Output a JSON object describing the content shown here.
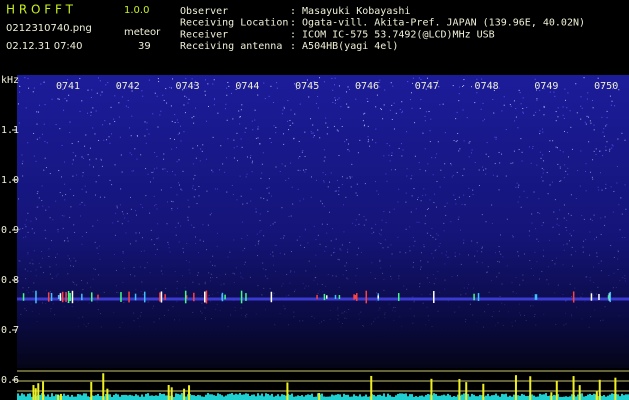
{
  "app": {
    "name": "H R O F F T",
    "version": "1.0.0"
  },
  "file": "0212310740.png",
  "datetime": "02.12.31 07:40",
  "meteor": {
    "label": "meteor",
    "count": "39"
  },
  "info": [
    {
      "label": "Observer",
      "value": ": Masayuki Kobayashi"
    },
    {
      "label": "Receiving Location",
      "value": ": Ogata-vill. Akita-Pref. JAPAN (139.96E, 40.02N)"
    },
    {
      "label": "Receiver",
      "value": ": ICOM IC-575 53.7492(@LCD)MHz USB"
    },
    {
      "label": "Receiving antenna",
      "value": ": A504HB(yagi 4el)"
    }
  ],
  "axis": {
    "unit": "kHz",
    "ticks": [
      "1.1",
      "1.0",
      "0.9",
      "0.8",
      "0.7",
      "0.6"
    ]
  },
  "times": [
    "0741",
    "0742",
    "0743",
    "0744",
    "0745",
    "0746",
    "0747",
    "0748",
    "0749",
    "0750"
  ]
}
